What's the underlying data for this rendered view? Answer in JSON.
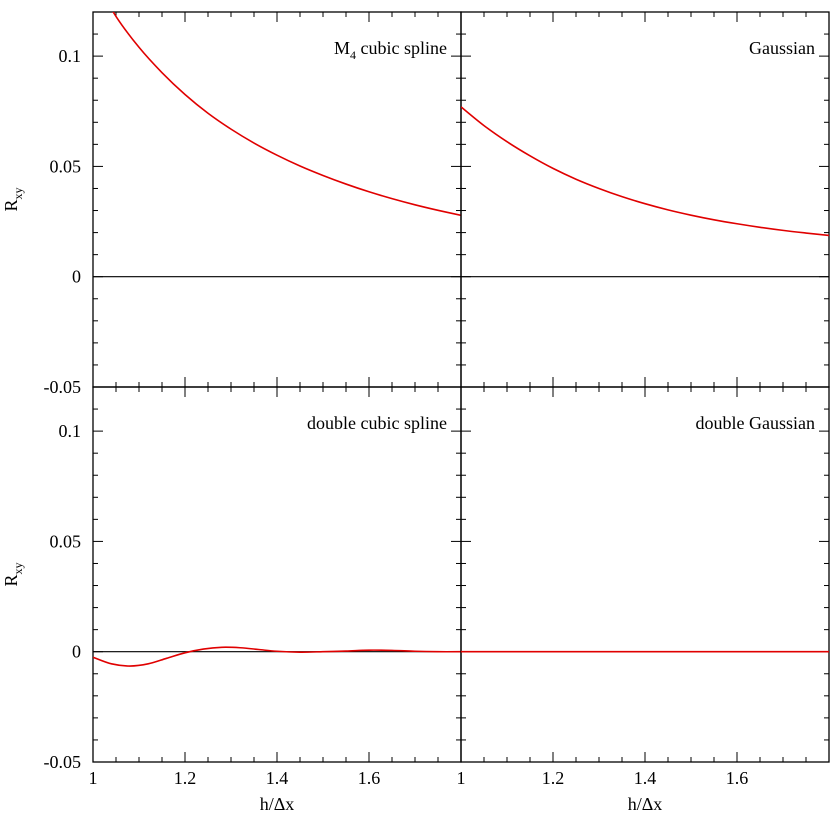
{
  "chart_data": {
    "type": "line",
    "xlabel": "h/Δx",
    "ylabel_main": "R",
    "ylabel_sub": "xy",
    "xlim": [
      1.0,
      1.8
    ],
    "ylim": [
      -0.05,
      0.12
    ],
    "xticks": [
      1.0,
      1.2,
      1.4,
      1.6
    ],
    "xtick_labels": [
      "1",
      "1.2",
      "1.4",
      "1.6"
    ],
    "yticks": [
      -0.05,
      0.0,
      0.05,
      0.1
    ],
    "ytick_labels": [
      "-0.05",
      "0",
      "0.05",
      "0.1"
    ],
    "line_color": "#e00000",
    "panels": [
      {
        "id": "m4",
        "title_main": "M",
        "title_sub": "4",
        "title_rest": " cubic spline",
        "x": [
          1.0,
          1.05,
          1.1,
          1.15,
          1.2,
          1.25,
          1.3,
          1.35,
          1.4,
          1.45,
          1.5,
          1.55,
          1.6,
          1.65,
          1.7,
          1.75,
          1.8
        ],
        "y": [
          0.136,
          0.118,
          0.104,
          0.0925,
          0.0826,
          0.0741,
          0.0669,
          0.0606,
          0.0551,
          0.0502,
          0.0459,
          0.042,
          0.0385,
          0.0354,
          0.0326,
          0.0301,
          0.0278
        ]
      },
      {
        "id": "gaussian",
        "title_main": "Gaussian",
        "title_sub": "",
        "title_rest": "",
        "x": [
          1.0,
          1.05,
          1.1,
          1.15,
          1.2,
          1.25,
          1.3,
          1.35,
          1.4,
          1.45,
          1.5,
          1.55,
          1.6,
          1.65,
          1.7,
          1.75,
          1.8
        ],
        "y": [
          0.077,
          0.0685,
          0.0612,
          0.0548,
          0.0491,
          0.0442,
          0.04,
          0.0363,
          0.0331,
          0.0303,
          0.0279,
          0.0258,
          0.024,
          0.0224,
          0.021,
          0.0198,
          0.0187
        ]
      },
      {
        "id": "double-cubic",
        "title_main": "double cubic spline",
        "title_sub": "",
        "title_rest": "",
        "x": [
          1.0,
          1.04,
          1.08,
          1.12,
          1.16,
          1.2,
          1.24,
          1.28,
          1.32,
          1.36,
          1.4,
          1.45,
          1.5,
          1.55,
          1.6,
          1.65,
          1.7,
          1.75,
          1.8
        ],
        "y": [
          -0.0025,
          -0.0055,
          -0.0065,
          -0.0055,
          -0.003,
          -0.0005,
          0.0012,
          0.002,
          0.0018,
          0.001,
          0.0002,
          -0.0002,
          0.0,
          0.0003,
          0.0007,
          0.0006,
          0.0002,
          0.0,
          0.0
        ]
      },
      {
        "id": "double-gaussian",
        "title_main": "double Gaussian",
        "title_sub": "",
        "title_rest": "",
        "x": [
          1.0,
          1.2,
          1.4,
          1.6,
          1.8
        ],
        "y": [
          0.0,
          0.0,
          0.0,
          0.0,
          0.0
        ]
      }
    ]
  }
}
